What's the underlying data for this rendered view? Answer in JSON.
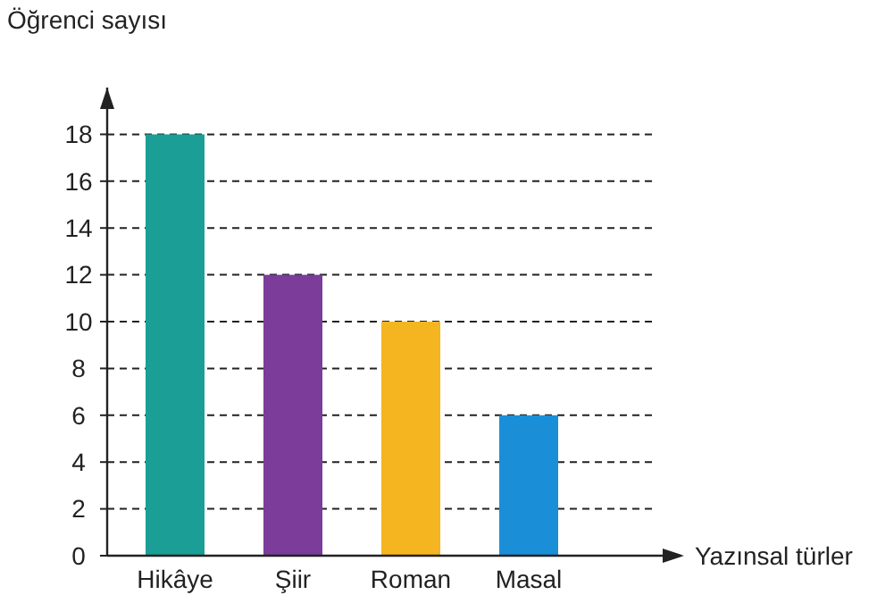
{
  "chart_data": {
    "type": "bar",
    "ylabel": "Öğrenci sayısı",
    "xlabel": "Yazınsal türler",
    "categories": [
      "Hikâye",
      "Şiir",
      "Roman",
      "Masal"
    ],
    "values": [
      18,
      12,
      10,
      6
    ],
    "colors": [
      "#1a9e96",
      "#7b3c9a",
      "#f5b520",
      "#1a8fd8"
    ],
    "ylim": [
      0,
      20
    ],
    "yticks": [
      0,
      2,
      4,
      6,
      8,
      10,
      12,
      14,
      16,
      18
    ],
    "grid": "y"
  }
}
